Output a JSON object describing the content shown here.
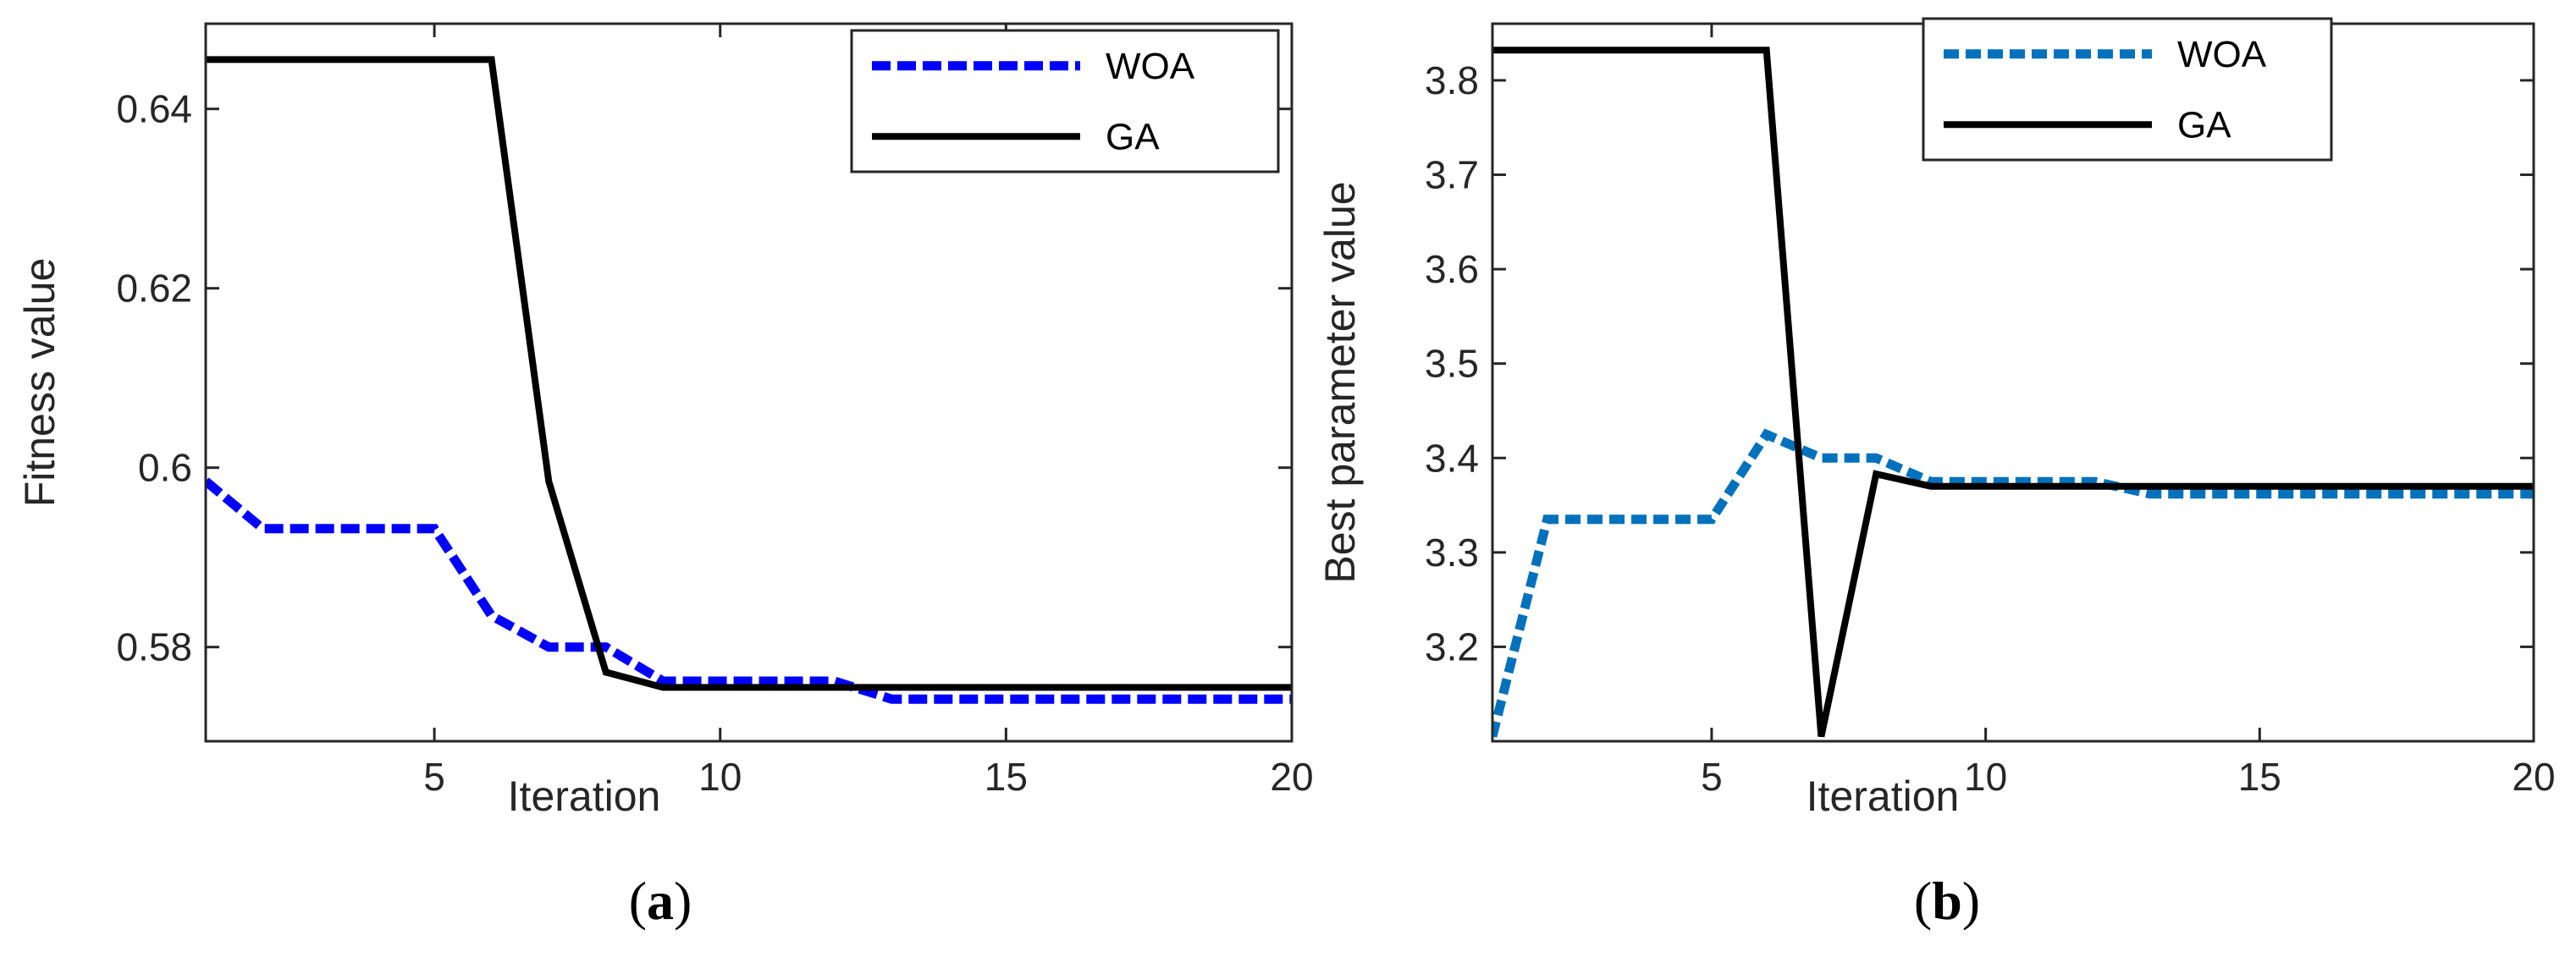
{
  "chart_data": [
    {
      "type": "line",
      "caption_letter": "a",
      "xlabel": "Iteration",
      "ylabel": "Fitness value",
      "xlim": [
        1,
        20
      ],
      "ylim": [
        0.5695,
        0.6495
      ],
      "xticks": [
        5,
        10,
        15,
        20
      ],
      "xtick_labels": [
        "5",
        "10",
        "15",
        "20"
      ],
      "yticks": [
        0.58,
        0.6,
        0.62,
        0.64
      ],
      "ytick_labels": [
        "0.58",
        "0.6",
        "0.62",
        "0.64"
      ],
      "legend_position": "top-right",
      "x": [
        1,
        2,
        3,
        4,
        5,
        6,
        7,
        8,
        9,
        10,
        11,
        12,
        13,
        14,
        15,
        16,
        17,
        18,
        19,
        20
      ],
      "series": [
        {
          "name": "WOA",
          "color": "#0000ff",
          "style": "dotted",
          "values": [
            0.5985,
            0.5932,
            0.5932,
            0.5932,
            0.5932,
            0.5835,
            0.58,
            0.58,
            0.5762,
            0.5762,
            0.5762,
            0.5762,
            0.5742,
            0.5742,
            0.5742,
            0.5742,
            0.5742,
            0.5742,
            0.5742,
            0.5742
          ]
        },
        {
          "name": "GA",
          "color": "#000000",
          "style": "solid",
          "values": [
            0.6455,
            0.6455,
            0.6455,
            0.6455,
            0.6455,
            0.6455,
            0.5985,
            0.5772,
            0.5755,
            0.5755,
            0.5755,
            0.5755,
            0.5755,
            0.5755,
            0.5755,
            0.5755,
            0.5755,
            0.5755,
            0.5755,
            0.5755
          ]
        }
      ]
    },
    {
      "type": "line",
      "caption_letter": "b",
      "xlabel": "Iteration",
      "ylabel": "Best parameter value",
      "xlim": [
        1,
        20
      ],
      "ylim": [
        3.1,
        3.86
      ],
      "xticks": [
        5,
        10,
        15,
        20
      ],
      "xtick_labels": [
        "5",
        "10",
        "15",
        "20"
      ],
      "yticks": [
        3.2,
        3.3,
        3.4,
        3.5,
        3.6,
        3.7,
        3.8
      ],
      "ytick_labels": [
        "3.2",
        "3.3",
        "3.4",
        "3.5",
        "3.6",
        "3.7",
        "3.8"
      ],
      "legend_position": "top-right",
      "x": [
        1,
        2,
        3,
        4,
        5,
        6,
        7,
        8,
        9,
        10,
        11,
        12,
        13,
        14,
        15,
        16,
        17,
        18,
        19,
        20
      ],
      "series": [
        {
          "name": "WOA",
          "color": "#0072bd",
          "style": "dotted",
          "values": [
            3.105,
            3.335,
            3.335,
            3.335,
            3.335,
            3.425,
            3.4,
            3.4,
            3.375,
            3.375,
            3.375,
            3.375,
            3.362,
            3.362,
            3.362,
            3.362,
            3.362,
            3.362,
            3.362,
            3.362
          ]
        },
        {
          "name": "GA",
          "color": "#000000",
          "style": "solid",
          "values": [
            3.832,
            3.832,
            3.832,
            3.832,
            3.832,
            3.832,
            3.105,
            3.383,
            3.37,
            3.37,
            3.37,
            3.37,
            3.37,
            3.37,
            3.37,
            3.37,
            3.37,
            3.37,
            3.37,
            3.37
          ]
        }
      ]
    }
  ]
}
